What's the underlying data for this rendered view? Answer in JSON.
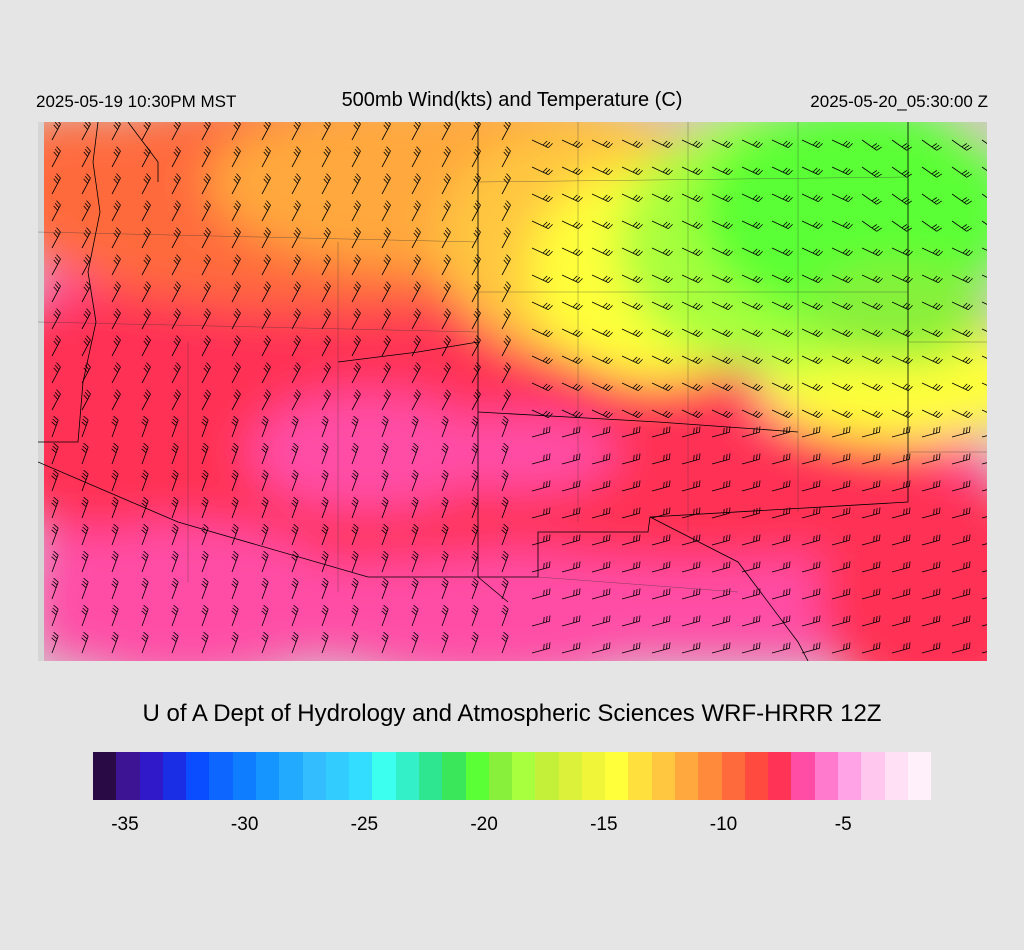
{
  "header": {
    "valid_local": "2025-05-19 10:30PM MST",
    "title": "500mb Wind(kts) and Temperature (C)",
    "valid_utc": "2025-05-20_05:30:00 Z"
  },
  "credit": "U of A Dept of Hydrology and Atmospheric Sciences WRF-HRRR 12Z",
  "colorbar": {
    "colors": [
      "#2a0a45",
      "#3c1494",
      "#2f19c8",
      "#1a2ee6",
      "#0a4cff",
      "#0d66ff",
      "#0f7dff",
      "#1595ff",
      "#22aaff",
      "#33bdff",
      "#33ccff",
      "#33ddff",
      "#3dfff0",
      "#33f0c8",
      "#2ee68f",
      "#3ae65a",
      "#5aff36",
      "#88f03a",
      "#a8ff3d",
      "#c4f03a",
      "#dcf23a",
      "#f0f53a",
      "#ffff3a",
      "#ffe03c",
      "#ffc640",
      "#ffa83e",
      "#ff8a3c",
      "#ff6a3c",
      "#ff4a40",
      "#ff3355",
      "#ff4da6",
      "#ff7acc",
      "#ffa3e6",
      "#ffc7ee",
      "#ffe0f4",
      "#fff0fa"
    ],
    "tick_labels": [
      "-35",
      "-30",
      "-25",
      "-20",
      "-15",
      "-10",
      "-5"
    ],
    "tick_values": [
      -35,
      -30,
      -25,
      -20,
      -15,
      -10,
      -5
    ],
    "range": [
      -36,
      -1
    ]
  },
  "map": {
    "field": "500mb temperature (C) with wind barbs (kts)",
    "legend_colors_used": {
      "cold_green": "#5aff36",
      "yellow": "#ffff3a",
      "orange": "#ffa83e",
      "red": "#ff3355",
      "pink": "#ff4da6"
    }
  }
}
